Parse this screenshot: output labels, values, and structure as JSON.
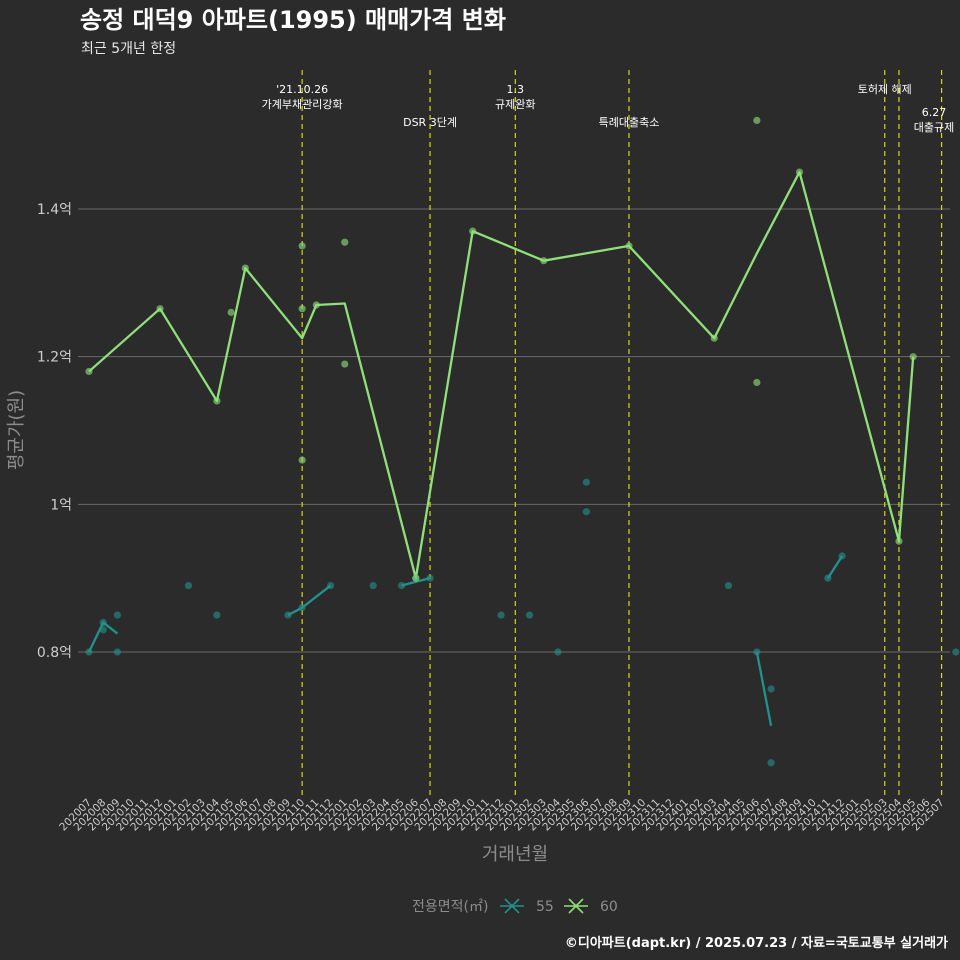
{
  "chart_data": {
    "type": "line",
    "title": "송정 대덕9 아파트(1995) 매매가격 변화",
    "subtitle": "최근 5개년 한정",
    "xlabel": "거래년월",
    "ylabel": "평균가(원)",
    "categories": [
      "202007",
      "202008",
      "202009",
      "202010",
      "202011",
      "202012",
      "202101",
      "202102",
      "202103",
      "202104",
      "202105",
      "202106",
      "202107",
      "202108",
      "202109",
      "202110",
      "202111",
      "202112",
      "202201",
      "202202",
      "202203",
      "202204",
      "202205",
      "202206",
      "202207",
      "202208",
      "202209",
      "202210",
      "202211",
      "202212",
      "202301",
      "202302",
      "202303",
      "202304",
      "202305",
      "202306",
      "202307",
      "202308",
      "202309",
      "202310",
      "202311",
      "202312",
      "202401",
      "202402",
      "202403",
      "202404",
      "202405",
      "202406",
      "202407",
      "202408",
      "202409",
      "202410",
      "202411",
      "202412",
      "202501",
      "202502",
      "202503",
      "202504",
      "202505",
      "202506",
      "202507"
    ],
    "y_ticks": [
      {
        "value": 0.8,
        "label": "0.8억"
      },
      {
        "value": 1.0,
        "label": "1억"
      },
      {
        "value": 1.2,
        "label": "1.2억"
      },
      {
        "value": 1.4,
        "label": "1.4억"
      }
    ],
    "ylim": [
      0.61,
      1.58
    ],
    "grid": true,
    "legend": {
      "title": "전용면적(㎡)",
      "position": "bottom"
    },
    "series": [
      {
        "name": "55",
        "color": "#23918c",
        "points": [
          {
            "x": "202007",
            "y": 0.8
          },
          {
            "x": "202008",
            "y": 0.84
          },
          {
            "x": "202008",
            "y": 0.83
          },
          {
            "x": "202009",
            "y": 0.85
          },
          {
            "x": "202009",
            "y": 0.8
          },
          {
            "x": "202102",
            "y": 0.89
          },
          {
            "x": "202104",
            "y": 0.85
          },
          {
            "x": "202109",
            "y": 0.85
          },
          {
            "x": "202110",
            "y": 0.86
          },
          {
            "x": "202112",
            "y": 0.89
          },
          {
            "x": "202203",
            "y": 0.89
          },
          {
            "x": "202205",
            "y": 0.89
          },
          {
            "x": "202206",
            "y": 0.9
          },
          {
            "x": "202207",
            "y": 0.9
          },
          {
            "x": "202212",
            "y": 0.85
          },
          {
            "x": "202302",
            "y": 0.85
          },
          {
            "x": "202304",
            "y": 0.8
          },
          {
            "x": "202306",
            "y": 1.03
          },
          {
            "x": "202306",
            "y": 0.99
          },
          {
            "x": "202404",
            "y": 0.89
          },
          {
            "x": "202406",
            "y": 0.8
          },
          {
            "x": "202407",
            "y": 0.75
          },
          {
            "x": "202407",
            "y": 0.65
          },
          {
            "x": "202411",
            "y": 0.9
          },
          {
            "x": "202412",
            "y": 0.93
          },
          {
            "x": "202508",
            "y": 0.8
          }
        ],
        "line": [
          {
            "x": "202007",
            "y": 0.8
          },
          {
            "x": "202008",
            "y": 0.84
          },
          {
            "x": "202009",
            "y": 0.825
          },
          {
            "break": true
          },
          {
            "x": "202109",
            "y": 0.85
          },
          {
            "x": "202110",
            "y": 0.86
          },
          {
            "x": "202112",
            "y": 0.89
          },
          {
            "break": true
          },
          {
            "x": "202205",
            "y": 0.89
          },
          {
            "x": "202207",
            "y": 0.9
          },
          {
            "break": true
          },
          {
            "x": "202406",
            "y": 0.8
          },
          {
            "x": "202407",
            "y": 0.7
          },
          {
            "break": true
          },
          {
            "x": "202411",
            "y": 0.9
          },
          {
            "x": "202412",
            "y": 0.93
          }
        ]
      },
      {
        "name": "60",
        "color": "#8fe07a",
        "points": [
          {
            "x": "202007",
            "y": 1.18
          },
          {
            "x": "202012",
            "y": 1.265
          },
          {
            "x": "202104",
            "y": 1.14
          },
          {
            "x": "202105",
            "y": 1.26
          },
          {
            "x": "202106",
            "y": 1.32
          },
          {
            "x": "202110",
            "y": 1.35
          },
          {
            "x": "202110",
            "y": 1.265
          },
          {
            "x": "202110",
            "y": 1.06
          },
          {
            "x": "202111",
            "y": 1.27
          },
          {
            "x": "202201",
            "y": 1.355
          },
          {
            "x": "202201",
            "y": 1.19
          },
          {
            "x": "202206",
            "y": 0.9
          },
          {
            "x": "202210",
            "y": 1.37
          },
          {
            "x": "202303",
            "y": 1.33
          },
          {
            "x": "202309",
            "y": 1.35
          },
          {
            "x": "202403",
            "y": 1.225
          },
          {
            "x": "202406",
            "y": 1.52
          },
          {
            "x": "202406",
            "y": 1.165
          },
          {
            "x": "202409",
            "y": 1.45
          },
          {
            "x": "202504",
            "y": 0.95
          },
          {
            "x": "202505",
            "y": 1.2
          }
        ],
        "line": [
          {
            "x": "202007",
            "y": 1.18
          },
          {
            "x": "202012",
            "y": 1.265
          },
          {
            "x": "202104",
            "y": 1.14
          },
          {
            "x": "202106",
            "y": 1.32
          },
          {
            "x": "202110",
            "y": 1.225
          },
          {
            "x": "202111",
            "y": 1.27
          },
          {
            "x": "202201",
            "y": 1.272
          },
          {
            "x": "202206",
            "y": 0.9
          },
          {
            "x": "202210",
            "y": 1.37
          },
          {
            "x": "202303",
            "y": 1.33
          },
          {
            "x": "202309",
            "y": 1.35
          },
          {
            "x": "202403",
            "y": 1.225
          },
          {
            "x": "202406",
            "y": 1.34
          },
          {
            "x": "202409",
            "y": 1.45
          },
          {
            "x": "202504",
            "y": 0.95
          },
          {
            "x": "202505",
            "y": 1.2
          }
        ]
      }
    ],
    "events": [
      {
        "x": "202110",
        "lines": [
          "'21.10.26",
          "가계부채관리강화"
        ],
        "level": 1
      },
      {
        "x": "202207",
        "lines": [
          "DSR 3단계"
        ],
        "level": 2
      },
      {
        "x": "202301",
        "lines": [
          "1.3",
          "규제완화"
        ],
        "level": 1
      },
      {
        "x": "202309",
        "lines": [
          "특례대출축소"
        ],
        "level": 2
      },
      {
        "x": "202503",
        "lines": [
          "토허제 해제"
        ],
        "level": 1
      },
      {
        "x": "202504",
        "lines": [],
        "level": 1
      },
      {
        "x": "202507",
        "lines": [
          "6.27",
          "대출규제"
        ],
        "level": 3
      }
    ],
    "event_color": "#e5e510"
  },
  "caption": "©디아파트(dapt.kr) / 2025.07.23 / 자료=국토교통부 실거래가"
}
